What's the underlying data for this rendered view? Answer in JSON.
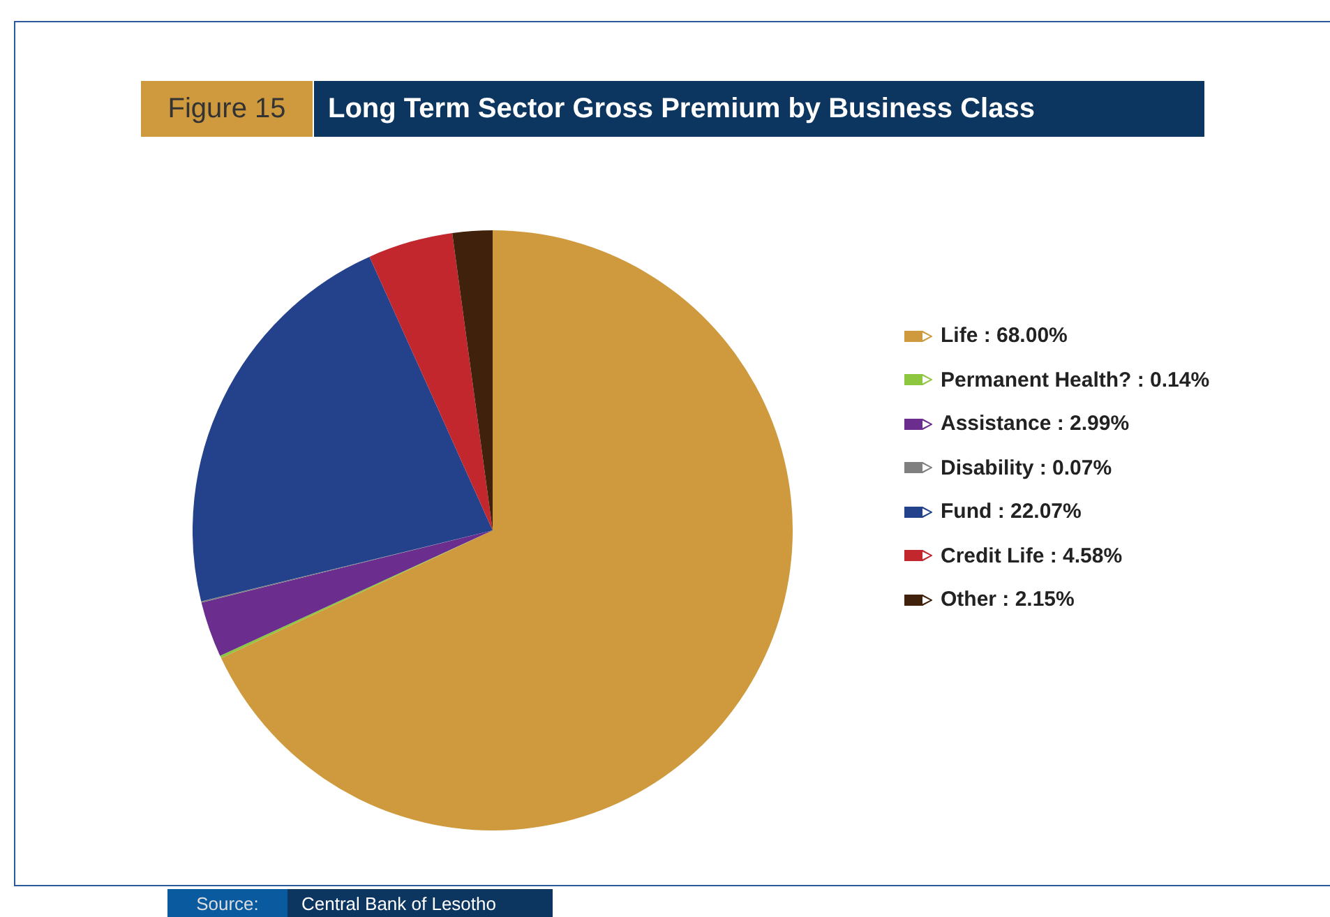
{
  "chart_data": {
    "type": "pie",
    "title": "Long Term Sector Gross Premium by Business Class",
    "categories": [
      "Life",
      "Permanent Health?",
      "Assistance",
      "Disability",
      "Fund",
      "Credit Life",
      "Other"
    ],
    "values": [
      68.0,
      0.14,
      2.99,
      0.07,
      22.07,
      4.58,
      2.15
    ],
    "value_labels": [
      "68.00%",
      "0.14%",
      "2.99%",
      "0.07%",
      "22.07%",
      "4.58%",
      "2.15%"
    ],
    "colors": [
      "#cf9a3e",
      "#8dc63f",
      "#6b2d8e",
      "#808080",
      "#24418c",
      "#c1272d",
      "#3f210c"
    ],
    "legend": "right",
    "annotations": [
      "Figure 15",
      "Source:",
      "Central Bank of Lesotho"
    ]
  }
}
